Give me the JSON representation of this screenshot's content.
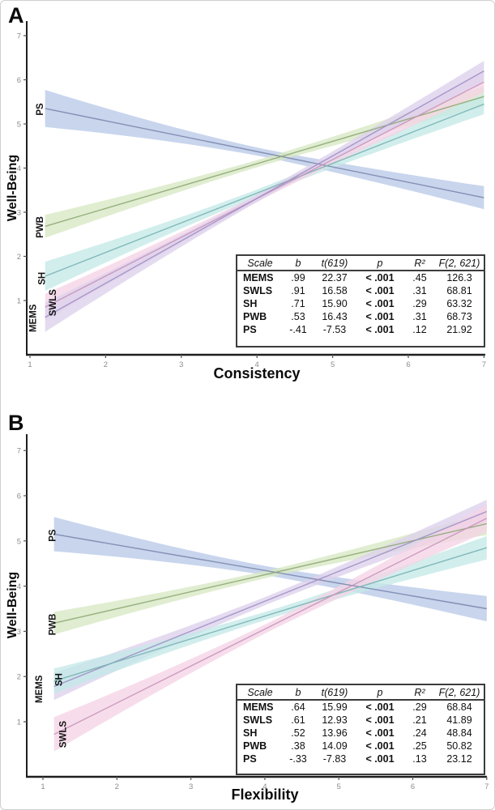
{
  "figure_title": "Well-being regressions figure",
  "accent_colors": {
    "ps_band": "#b9c9e8",
    "ps_line": "#7c87ad",
    "pwb_band": "#d7e8c3",
    "pwb_line": "#8ea877",
    "sh_band": "#c4e9e8",
    "sh_line": "#79b2b2",
    "swls_band": "#f5d4e6",
    "swls_line": "#c795bb",
    "mems_band": "#dcd1ec",
    "mems_line": "#9e90c4"
  },
  "chart_data": [
    {
      "type": "line",
      "label": "A",
      "x_label": "Consistency",
      "y_label": "Well-Being",
      "xlim": [
        1,
        7
      ],
      "ylim": [
        0,
        7.3
      ],
      "x_ticks": [
        "1",
        "2",
        "3",
        "4",
        "5",
        "6",
        "7"
      ],
      "y_ticks": [
        "1",
        "2",
        "3",
        "4",
        "5",
        "6",
        "7"
      ],
      "grid": false,
      "legend_position": "inline-left-labels",
      "series": [
        {
          "name": "PS",
          "band_color": "#b9c9e8",
          "line_color": "#7c87ad",
          "x_start": 1.2,
          "x_end": 7,
          "y_start": 5.35,
          "y_end": 3.33,
          "hw_start": 0.42,
          "hw_mid": 0.09,
          "hw_end": 0.26,
          "label_x": 1.17,
          "label_y": 5.33
        },
        {
          "name": "PWB",
          "band_color": "#d7e8c3",
          "line_color": "#8ea877",
          "x_start": 1.2,
          "x_end": 7,
          "y_start": 2.68,
          "y_end": 5.62,
          "hw_start": 0.26,
          "hw_mid": 0.08,
          "hw_end": 0.23,
          "label_x": 1.17,
          "label_y": 2.66
        },
        {
          "name": "SH",
          "band_color": "#c4e9e8",
          "line_color": "#79b2b2",
          "x_start": 1.2,
          "x_end": 7,
          "y_start": 1.55,
          "y_end": 5.45,
          "hw_start": 0.33,
          "hw_mid": 0.08,
          "hw_end": 0.23,
          "label_x": 1.2,
          "label_y": 1.5
        },
        {
          "name": "SWLS",
          "band_color": "#f5d4e6",
          "line_color": "#c795bb",
          "x_start": 1.2,
          "x_end": 7,
          "y_start": 0.85,
          "y_end": 5.95,
          "hw_start": 0.3,
          "hw_mid": 0.08,
          "hw_end": 0.24,
          "label_x": 1.34,
          "label_y": 0.95
        },
        {
          "name": "MEMS",
          "band_color": "#dcd1ec",
          "line_color": "#9e90c4",
          "x_start": 1.2,
          "x_end": 7,
          "y_start": 0.62,
          "y_end": 6.2,
          "hw_start": 0.33,
          "hw_mid": 0.08,
          "hw_end": 0.23,
          "label_x": 1.08,
          "label_y": 0.6
        }
      ],
      "table": {
        "headers": [
          "Scale",
          "b",
          "t(619)",
          "p",
          "R²",
          "F(2, 621)"
        ],
        "rows": [
          [
            "MEMS",
            ".99",
            "22.37",
            "< .001",
            ".45",
            "126.3"
          ],
          [
            "SWLS",
            ".91",
            "16.58",
            "< .001",
            ".31",
            "68.81"
          ],
          [
            "SH",
            ".71",
            "15.90",
            "< .001",
            ".29",
            "63.32"
          ],
          [
            "PWB",
            ".53",
            "16.43",
            "< .001",
            ".31",
            "68.73"
          ],
          [
            "PS",
            "-.41",
            "-7.53",
            "< .001",
            ".12",
            "21.92"
          ]
        ]
      }
    },
    {
      "type": "line",
      "label": "B",
      "x_label": "Flexibility",
      "y_label": "Well-Being",
      "xlim": [
        1,
        7
      ],
      "ylim": [
        0,
        7.3
      ],
      "x_ticks": [
        "1",
        "2",
        "3",
        "4",
        "5",
        "6",
        "7"
      ],
      "y_ticks": [
        "1",
        "2",
        "3",
        "4",
        "5",
        "6",
        "7"
      ],
      "grid": false,
      "legend_position": "inline-left-labels",
      "series": [
        {
          "name": "PS",
          "band_color": "#b9c9e8",
          "line_color": "#7c87ad",
          "x_start": 1.15,
          "x_end": 7,
          "y_start": 5.15,
          "y_end": 3.5,
          "hw_start": 0.38,
          "hw_mid": 0.1,
          "hw_end": 0.28,
          "label_x": 1.17,
          "label_y": 5.12
        },
        {
          "name": "PWB",
          "band_color": "#d7e8c3",
          "line_color": "#8ea877",
          "x_start": 1.15,
          "x_end": 7,
          "y_start": 3.18,
          "y_end": 5.38,
          "hw_start": 0.25,
          "hw_mid": 0.08,
          "hw_end": 0.25,
          "label_x": 1.17,
          "label_y": 3.15
        },
        {
          "name": "MEMS",
          "band_color": "#dcd1ec",
          "line_color": "#9e90c4",
          "x_start": 1.15,
          "x_end": 7,
          "y_start": 1.78,
          "y_end": 5.65,
          "hw_start": 0.3,
          "hw_mid": 0.09,
          "hw_end": 0.26,
          "label_x": 0.99,
          "label_y": 1.72
        },
        {
          "name": "SH",
          "band_color": "#c4e9e8",
          "line_color": "#79b2b2",
          "x_start": 1.15,
          "x_end": 7,
          "y_start": 1.9,
          "y_end": 4.85,
          "hw_start": 0.28,
          "hw_mid": 0.09,
          "hw_end": 0.26,
          "label_x": 1.26,
          "label_y": 1.93
        },
        {
          "name": "SWLS",
          "band_color": "#f5d4e6",
          "line_color": "#c795bb",
          "x_start": 1.15,
          "x_end": 7,
          "y_start": 0.72,
          "y_end": 5.5,
          "hw_start": 0.38,
          "hw_mid": 0.1,
          "hw_end": 0.3,
          "label_x": 1.31,
          "label_y": 0.72
        }
      ],
      "table": {
        "headers": [
          "Scale",
          "b",
          "t(619)",
          "p",
          "R²",
          "F(2, 621)"
        ],
        "rows": [
          [
            "MEMS",
            ".64",
            "15.99",
            "< .001",
            ".29",
            "68.84"
          ],
          [
            "SWLS",
            ".61",
            "12.93",
            "< .001",
            ".21",
            "41.89"
          ],
          [
            "SH",
            ".52",
            "13.96",
            "< .001",
            ".24",
            "48.84"
          ],
          [
            "PWB",
            ".38",
            "14.09",
            "< .001",
            ".25",
            "50.82"
          ],
          [
            "PS",
            "-.33",
            "-7.83",
            "< .001",
            ".13",
            "23.12"
          ]
        ]
      }
    }
  ]
}
